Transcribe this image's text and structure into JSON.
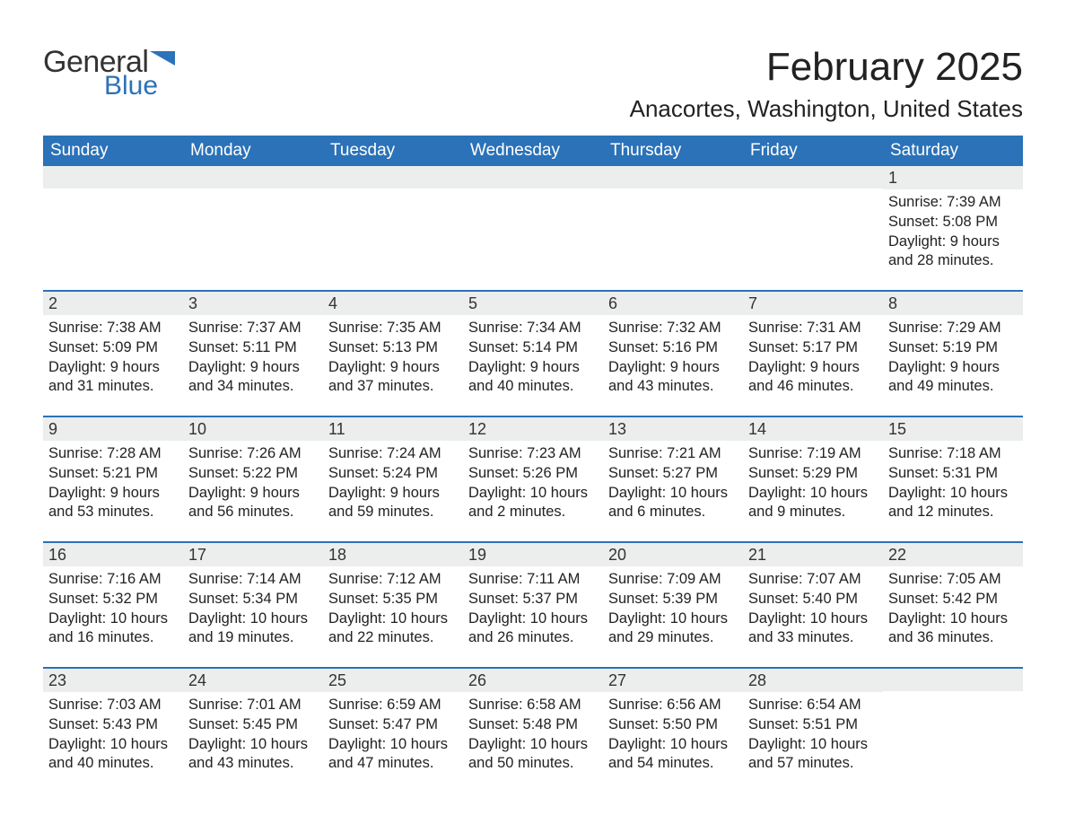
{
  "logo": {
    "text_general": "General",
    "text_blue": "Blue",
    "flag_color": "#2b72b8"
  },
  "title": "February 2025",
  "location": "Anacortes, Washington, United States",
  "colors": {
    "header_bg": "#2b72b8",
    "header_text": "#ffffff",
    "daynum_bg": "#eceded",
    "divider": "#2b72b8",
    "text": "#222222"
  },
  "typography": {
    "title_fontsize": 44,
    "location_fontsize": 26,
    "weekday_fontsize": 19,
    "daynum_fontsize": 18,
    "body_fontsize": 16.5
  },
  "weekdays": [
    "Sunday",
    "Monday",
    "Tuesday",
    "Wednesday",
    "Thursday",
    "Friday",
    "Saturday"
  ],
  "weeks": [
    [
      {
        "day": "",
        "sunrise": "",
        "sunset": "",
        "daylight": ""
      },
      {
        "day": "",
        "sunrise": "",
        "sunset": "",
        "daylight": ""
      },
      {
        "day": "",
        "sunrise": "",
        "sunset": "",
        "daylight": ""
      },
      {
        "day": "",
        "sunrise": "",
        "sunset": "",
        "daylight": ""
      },
      {
        "day": "",
        "sunrise": "",
        "sunset": "",
        "daylight": ""
      },
      {
        "day": "",
        "sunrise": "",
        "sunset": "",
        "daylight": ""
      },
      {
        "day": "1",
        "sunrise": "Sunrise: 7:39 AM",
        "sunset": "Sunset: 5:08 PM",
        "daylight": "Daylight: 9 hours and 28 minutes."
      }
    ],
    [
      {
        "day": "2",
        "sunrise": "Sunrise: 7:38 AM",
        "sunset": "Sunset: 5:09 PM",
        "daylight": "Daylight: 9 hours and 31 minutes."
      },
      {
        "day": "3",
        "sunrise": "Sunrise: 7:37 AM",
        "sunset": "Sunset: 5:11 PM",
        "daylight": "Daylight: 9 hours and 34 minutes."
      },
      {
        "day": "4",
        "sunrise": "Sunrise: 7:35 AM",
        "sunset": "Sunset: 5:13 PM",
        "daylight": "Daylight: 9 hours and 37 minutes."
      },
      {
        "day": "5",
        "sunrise": "Sunrise: 7:34 AM",
        "sunset": "Sunset: 5:14 PM",
        "daylight": "Daylight: 9 hours and 40 minutes."
      },
      {
        "day": "6",
        "sunrise": "Sunrise: 7:32 AM",
        "sunset": "Sunset: 5:16 PM",
        "daylight": "Daylight: 9 hours and 43 minutes."
      },
      {
        "day": "7",
        "sunrise": "Sunrise: 7:31 AM",
        "sunset": "Sunset: 5:17 PM",
        "daylight": "Daylight: 9 hours and 46 minutes."
      },
      {
        "day": "8",
        "sunrise": "Sunrise: 7:29 AM",
        "sunset": "Sunset: 5:19 PM",
        "daylight": "Daylight: 9 hours and 49 minutes."
      }
    ],
    [
      {
        "day": "9",
        "sunrise": "Sunrise: 7:28 AM",
        "sunset": "Sunset: 5:21 PM",
        "daylight": "Daylight: 9 hours and 53 minutes."
      },
      {
        "day": "10",
        "sunrise": "Sunrise: 7:26 AM",
        "sunset": "Sunset: 5:22 PM",
        "daylight": "Daylight: 9 hours and 56 minutes."
      },
      {
        "day": "11",
        "sunrise": "Sunrise: 7:24 AM",
        "sunset": "Sunset: 5:24 PM",
        "daylight": "Daylight: 9 hours and 59 minutes."
      },
      {
        "day": "12",
        "sunrise": "Sunrise: 7:23 AM",
        "sunset": "Sunset: 5:26 PM",
        "daylight": "Daylight: 10 hours and 2 minutes."
      },
      {
        "day": "13",
        "sunrise": "Sunrise: 7:21 AM",
        "sunset": "Sunset: 5:27 PM",
        "daylight": "Daylight: 10 hours and 6 minutes."
      },
      {
        "day": "14",
        "sunrise": "Sunrise: 7:19 AM",
        "sunset": "Sunset: 5:29 PM",
        "daylight": "Daylight: 10 hours and 9 minutes."
      },
      {
        "day": "15",
        "sunrise": "Sunrise: 7:18 AM",
        "sunset": "Sunset: 5:31 PM",
        "daylight": "Daylight: 10 hours and 12 minutes."
      }
    ],
    [
      {
        "day": "16",
        "sunrise": "Sunrise: 7:16 AM",
        "sunset": "Sunset: 5:32 PM",
        "daylight": "Daylight: 10 hours and 16 minutes."
      },
      {
        "day": "17",
        "sunrise": "Sunrise: 7:14 AM",
        "sunset": "Sunset: 5:34 PM",
        "daylight": "Daylight: 10 hours and 19 minutes."
      },
      {
        "day": "18",
        "sunrise": "Sunrise: 7:12 AM",
        "sunset": "Sunset: 5:35 PM",
        "daylight": "Daylight: 10 hours and 22 minutes."
      },
      {
        "day": "19",
        "sunrise": "Sunrise: 7:11 AM",
        "sunset": "Sunset: 5:37 PM",
        "daylight": "Daylight: 10 hours and 26 minutes."
      },
      {
        "day": "20",
        "sunrise": "Sunrise: 7:09 AM",
        "sunset": "Sunset: 5:39 PM",
        "daylight": "Daylight: 10 hours and 29 minutes."
      },
      {
        "day": "21",
        "sunrise": "Sunrise: 7:07 AM",
        "sunset": "Sunset: 5:40 PM",
        "daylight": "Daylight: 10 hours and 33 minutes."
      },
      {
        "day": "22",
        "sunrise": "Sunrise: 7:05 AM",
        "sunset": "Sunset: 5:42 PM",
        "daylight": "Daylight: 10 hours and 36 minutes."
      }
    ],
    [
      {
        "day": "23",
        "sunrise": "Sunrise: 7:03 AM",
        "sunset": "Sunset: 5:43 PM",
        "daylight": "Daylight: 10 hours and 40 minutes."
      },
      {
        "day": "24",
        "sunrise": "Sunrise: 7:01 AM",
        "sunset": "Sunset: 5:45 PM",
        "daylight": "Daylight: 10 hours and 43 minutes."
      },
      {
        "day": "25",
        "sunrise": "Sunrise: 6:59 AM",
        "sunset": "Sunset: 5:47 PM",
        "daylight": "Daylight: 10 hours and 47 minutes."
      },
      {
        "day": "26",
        "sunrise": "Sunrise: 6:58 AM",
        "sunset": "Sunset: 5:48 PM",
        "daylight": "Daylight: 10 hours and 50 minutes."
      },
      {
        "day": "27",
        "sunrise": "Sunrise: 6:56 AM",
        "sunset": "Sunset: 5:50 PM",
        "daylight": "Daylight: 10 hours and 54 minutes."
      },
      {
        "day": "28",
        "sunrise": "Sunrise: 6:54 AM",
        "sunset": "Sunset: 5:51 PM",
        "daylight": "Daylight: 10 hours and 57 minutes."
      },
      {
        "day": "",
        "sunrise": "",
        "sunset": "",
        "daylight": ""
      }
    ]
  ]
}
